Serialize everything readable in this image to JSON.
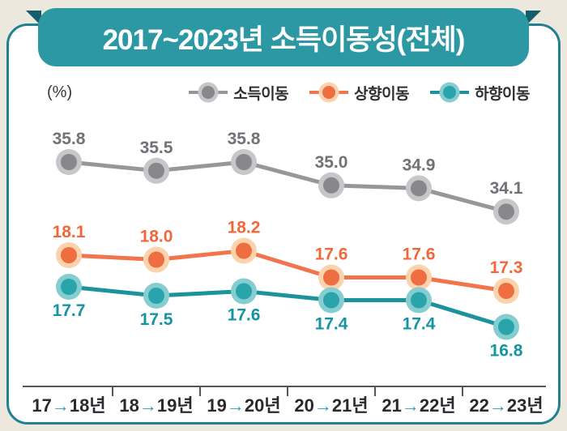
{
  "title": "2017~2023년 소득이동성(전체)",
  "unit_label": "(%)",
  "banner": {
    "fill": "#2b98a3",
    "fold": "#135e6a",
    "text_color": "#ffffff"
  },
  "card": {
    "background": "#ffffff",
    "border_color": "#20818f",
    "page_background": "#ece8de"
  },
  "chart_data": {
    "type": "line",
    "title": "2017~2023년 소득이동성(전체)",
    "ylabel": "(%)",
    "xlabel": "",
    "grid": false,
    "legend_position": "top",
    "categories": [
      "17→18년",
      "18→19년",
      "19→20년",
      "20→21년",
      "21→22년",
      "22→23년"
    ],
    "series": [
      {
        "name": "소득이동",
        "values": [
          35.8,
          35.5,
          35.8,
          35.0,
          34.9,
          34.1
        ],
        "line_color": "#97979b",
        "dot_color": "#88888c",
        "halo_color": "#c7c7ca",
        "label_color": "#717176",
        "label_position": "above"
      },
      {
        "name": "상향이동",
        "values": [
          18.1,
          18.0,
          18.2,
          17.6,
          17.6,
          17.3
        ],
        "line_color": "#f1754c",
        "dot_color": "#ee6e42",
        "halo_color": "#fbd3ad",
        "label_color": "#f2673a",
        "label_position": "above"
      },
      {
        "name": "하향이동",
        "values": [
          17.7,
          17.5,
          17.6,
          17.4,
          17.4,
          16.8
        ],
        "line_color": "#1b929c",
        "dot_color": "#2aa4ab",
        "halo_color": "#85cdd1",
        "label_color": "#1295a0",
        "label_position": "below"
      }
    ],
    "axis": {
      "line_color": "#55555a",
      "label_color": "#2a2a2e",
      "arrow_color": "#2a9eba"
    }
  }
}
